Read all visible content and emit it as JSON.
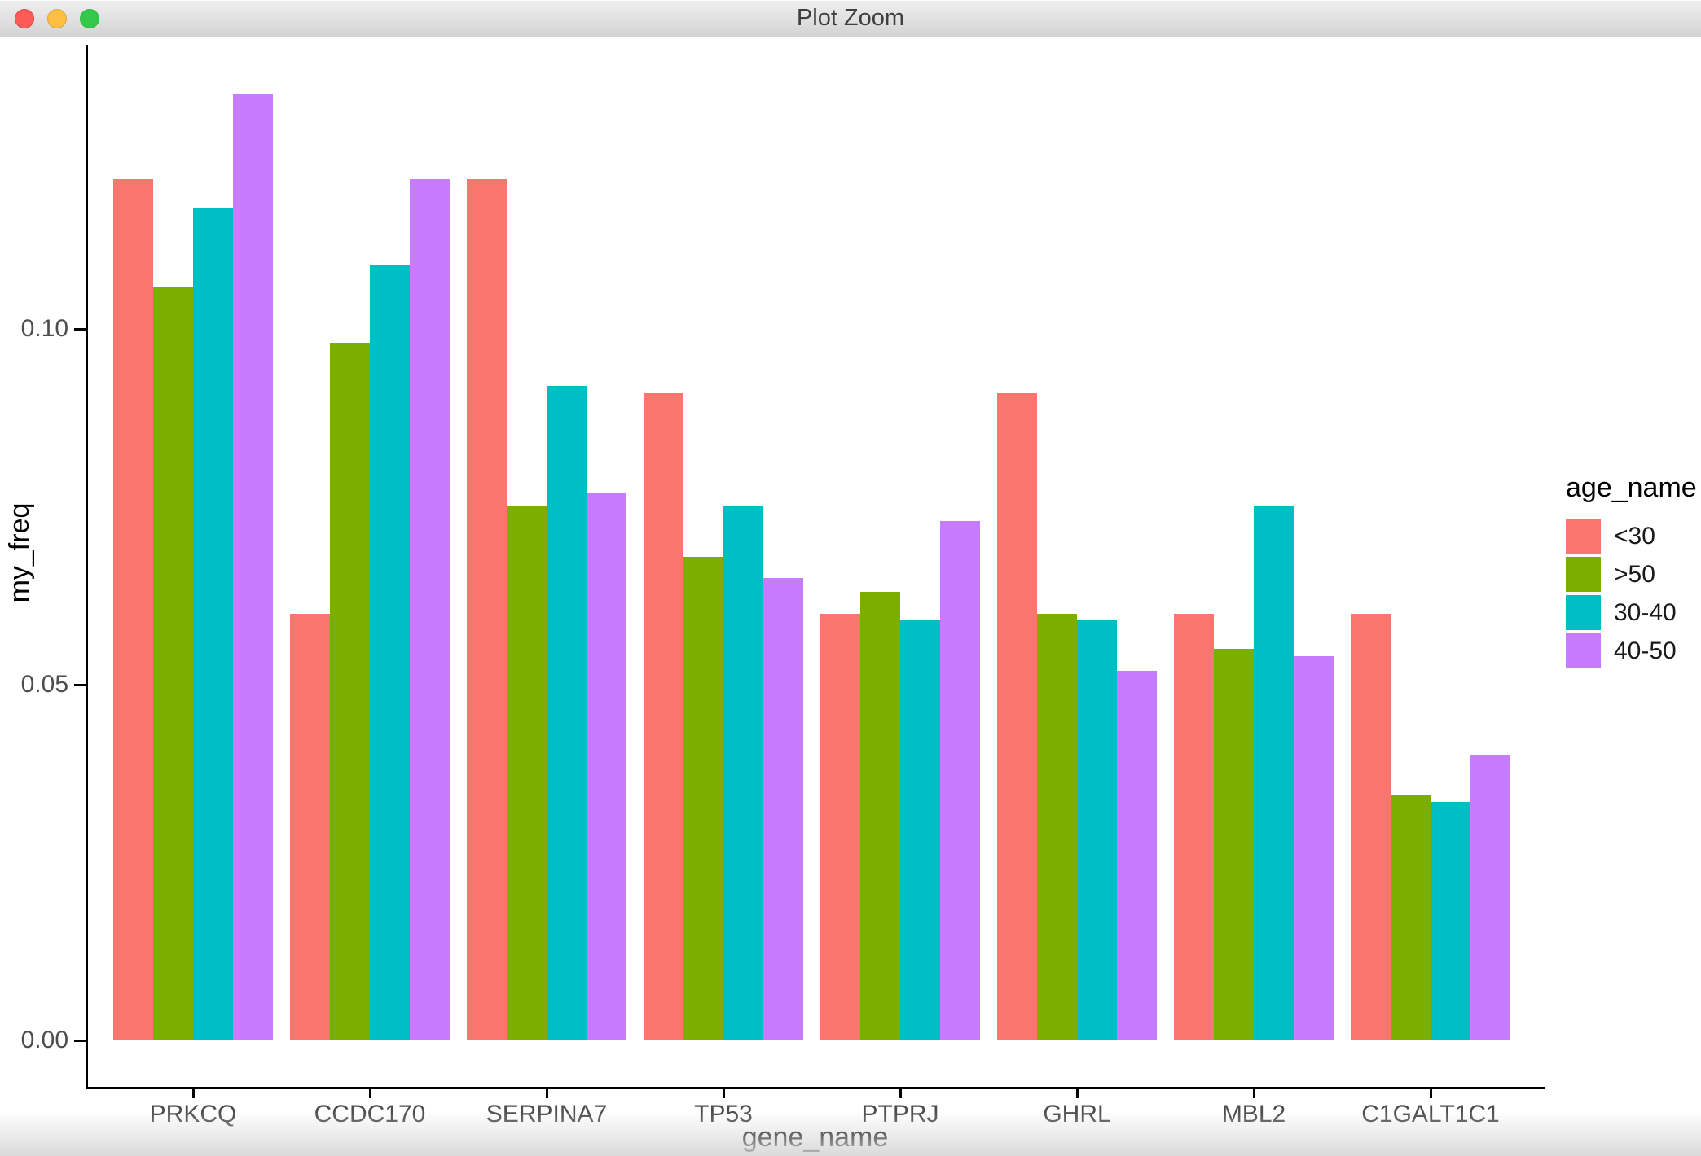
{
  "window": {
    "title": "Plot Zoom",
    "controls": {
      "close_label": "close",
      "minimize_label": "minimize",
      "zoom_label": "zoom"
    }
  },
  "chart_data": {
    "type": "bar",
    "title": "",
    "xlabel": "gene_name",
    "ylabel": "my_freq",
    "categories": [
      "PRKCQ",
      "CCDC170",
      "SERPINA7",
      "TP53",
      "PTPRJ",
      "GHRL",
      "MBL2",
      "C1GALT1C1"
    ],
    "series": [
      {
        "name": "<30",
        "color": "#F8766D",
        "values": [
          0.121,
          0.06,
          0.121,
          0.091,
          0.06,
          0.091,
          0.06,
          0.06
        ]
      },
      {
        "name": ">50",
        "color": "#7CAE00",
        "values": [
          0.106,
          0.098,
          0.075,
          0.068,
          0.063,
          0.06,
          0.055,
          0.0345
        ]
      },
      {
        "name": "30-40",
        "color": "#00BFC4",
        "values": [
          0.117,
          0.109,
          0.092,
          0.075,
          0.059,
          0.059,
          0.075,
          0.0335
        ]
      },
      {
        "name": "40-50",
        "color": "#C77CFF",
        "values": [
          0.133,
          0.121,
          0.077,
          0.065,
          0.073,
          0.052,
          0.054,
          0.04
        ]
      }
    ],
    "y_ticks": [
      {
        "value": 0.0,
        "label": "0.00"
      },
      {
        "value": 0.05,
        "label": "0.05"
      },
      {
        "value": 0.1,
        "label": "0.10"
      }
    ],
    "ylim": [
      0,
      0.14
    ],
    "grid": false,
    "legend_title": "age_name",
    "legend_position": "right",
    "legend_entries": [
      "<30",
      ">50",
      "30-40",
      "40-50"
    ]
  }
}
